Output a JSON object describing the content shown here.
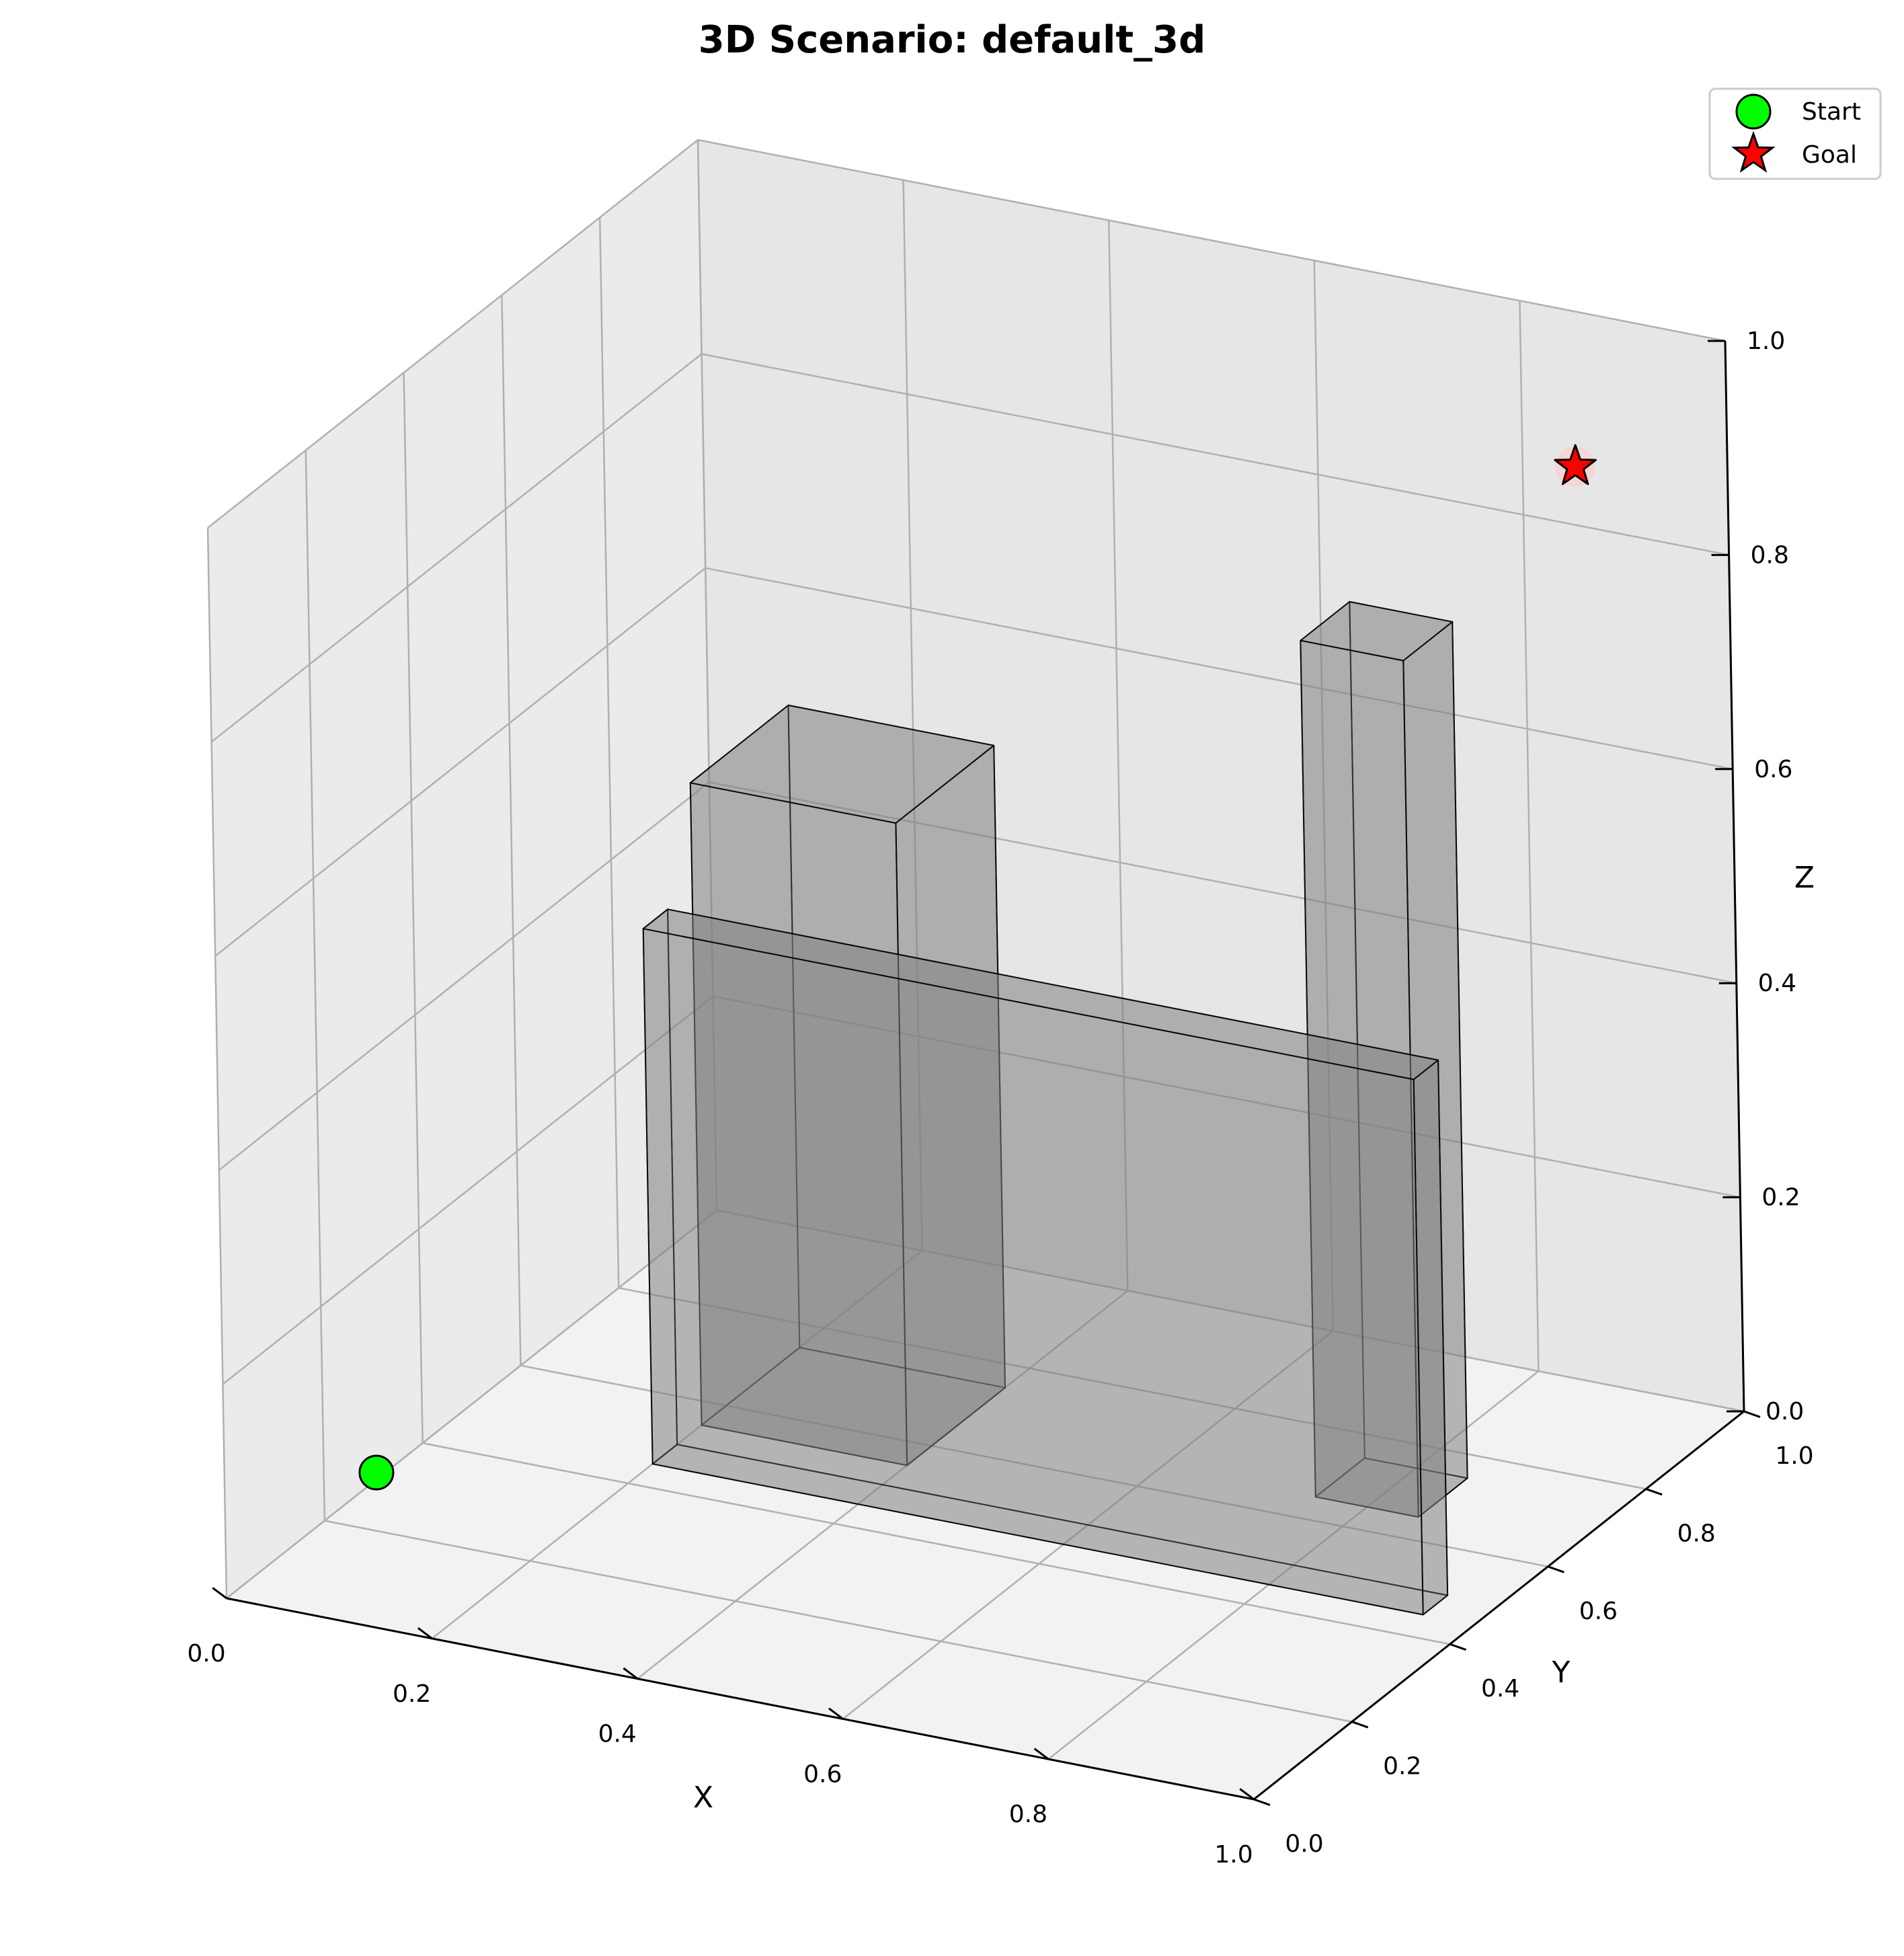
{
  "chart_data": {
    "type": "scatter",
    "projection": "3d",
    "title": "3D Scenario: default_3d",
    "xlabel": "X",
    "ylabel": "Y",
    "zlabel": "Z",
    "xlim": [
      0,
      1
    ],
    "ylim": [
      0,
      1
    ],
    "zlim": [
      0,
      1
    ],
    "grid": true,
    "legend_position": "top-right",
    "x_ticks": [
      "0.0",
      "0.2",
      "0.4",
      "0.6",
      "0.8",
      "1.0"
    ],
    "y_ticks": [
      "0.0",
      "0.2",
      "0.4",
      "0.6",
      "0.8",
      "1.0"
    ],
    "z_ticks": [
      "0.0",
      "0.2",
      "0.4",
      "0.6",
      "0.8",
      "1.0"
    ],
    "series": [
      {
        "name": "Start",
        "marker": "circle",
        "color": "#00ff00",
        "points": [
          [
            0.1,
            0.1,
            0.1
          ]
        ]
      },
      {
        "name": "Goal",
        "marker": "star",
        "color": "#ff0000",
        "points": [
          [
            0.9,
            0.9,
            0.9
          ]
        ]
      }
    ],
    "obstacles": [
      {
        "x": [
          0.2,
          0.4
        ],
        "y": [
          0.55,
          0.75
        ],
        "z": [
          0.0,
          0.6
        ]
      },
      {
        "x": [
          0.75,
          0.85
        ],
        "y": [
          0.65,
          0.75
        ],
        "z": [
          0.0,
          0.8
        ]
      },
      {
        "x": [
          0.2,
          0.95
        ],
        "y": [
          0.45,
          0.5
        ],
        "z": [
          0.0,
          0.5
        ]
      }
    ],
    "colors": {
      "obstacle_fill": "#808080",
      "obstacle_edge": "#000000",
      "pane_floor": "#f2f2f2",
      "pane_side": "#ebebeb",
      "pane_back": "#e6e6e6",
      "grid": "#b0b0b0"
    }
  }
}
